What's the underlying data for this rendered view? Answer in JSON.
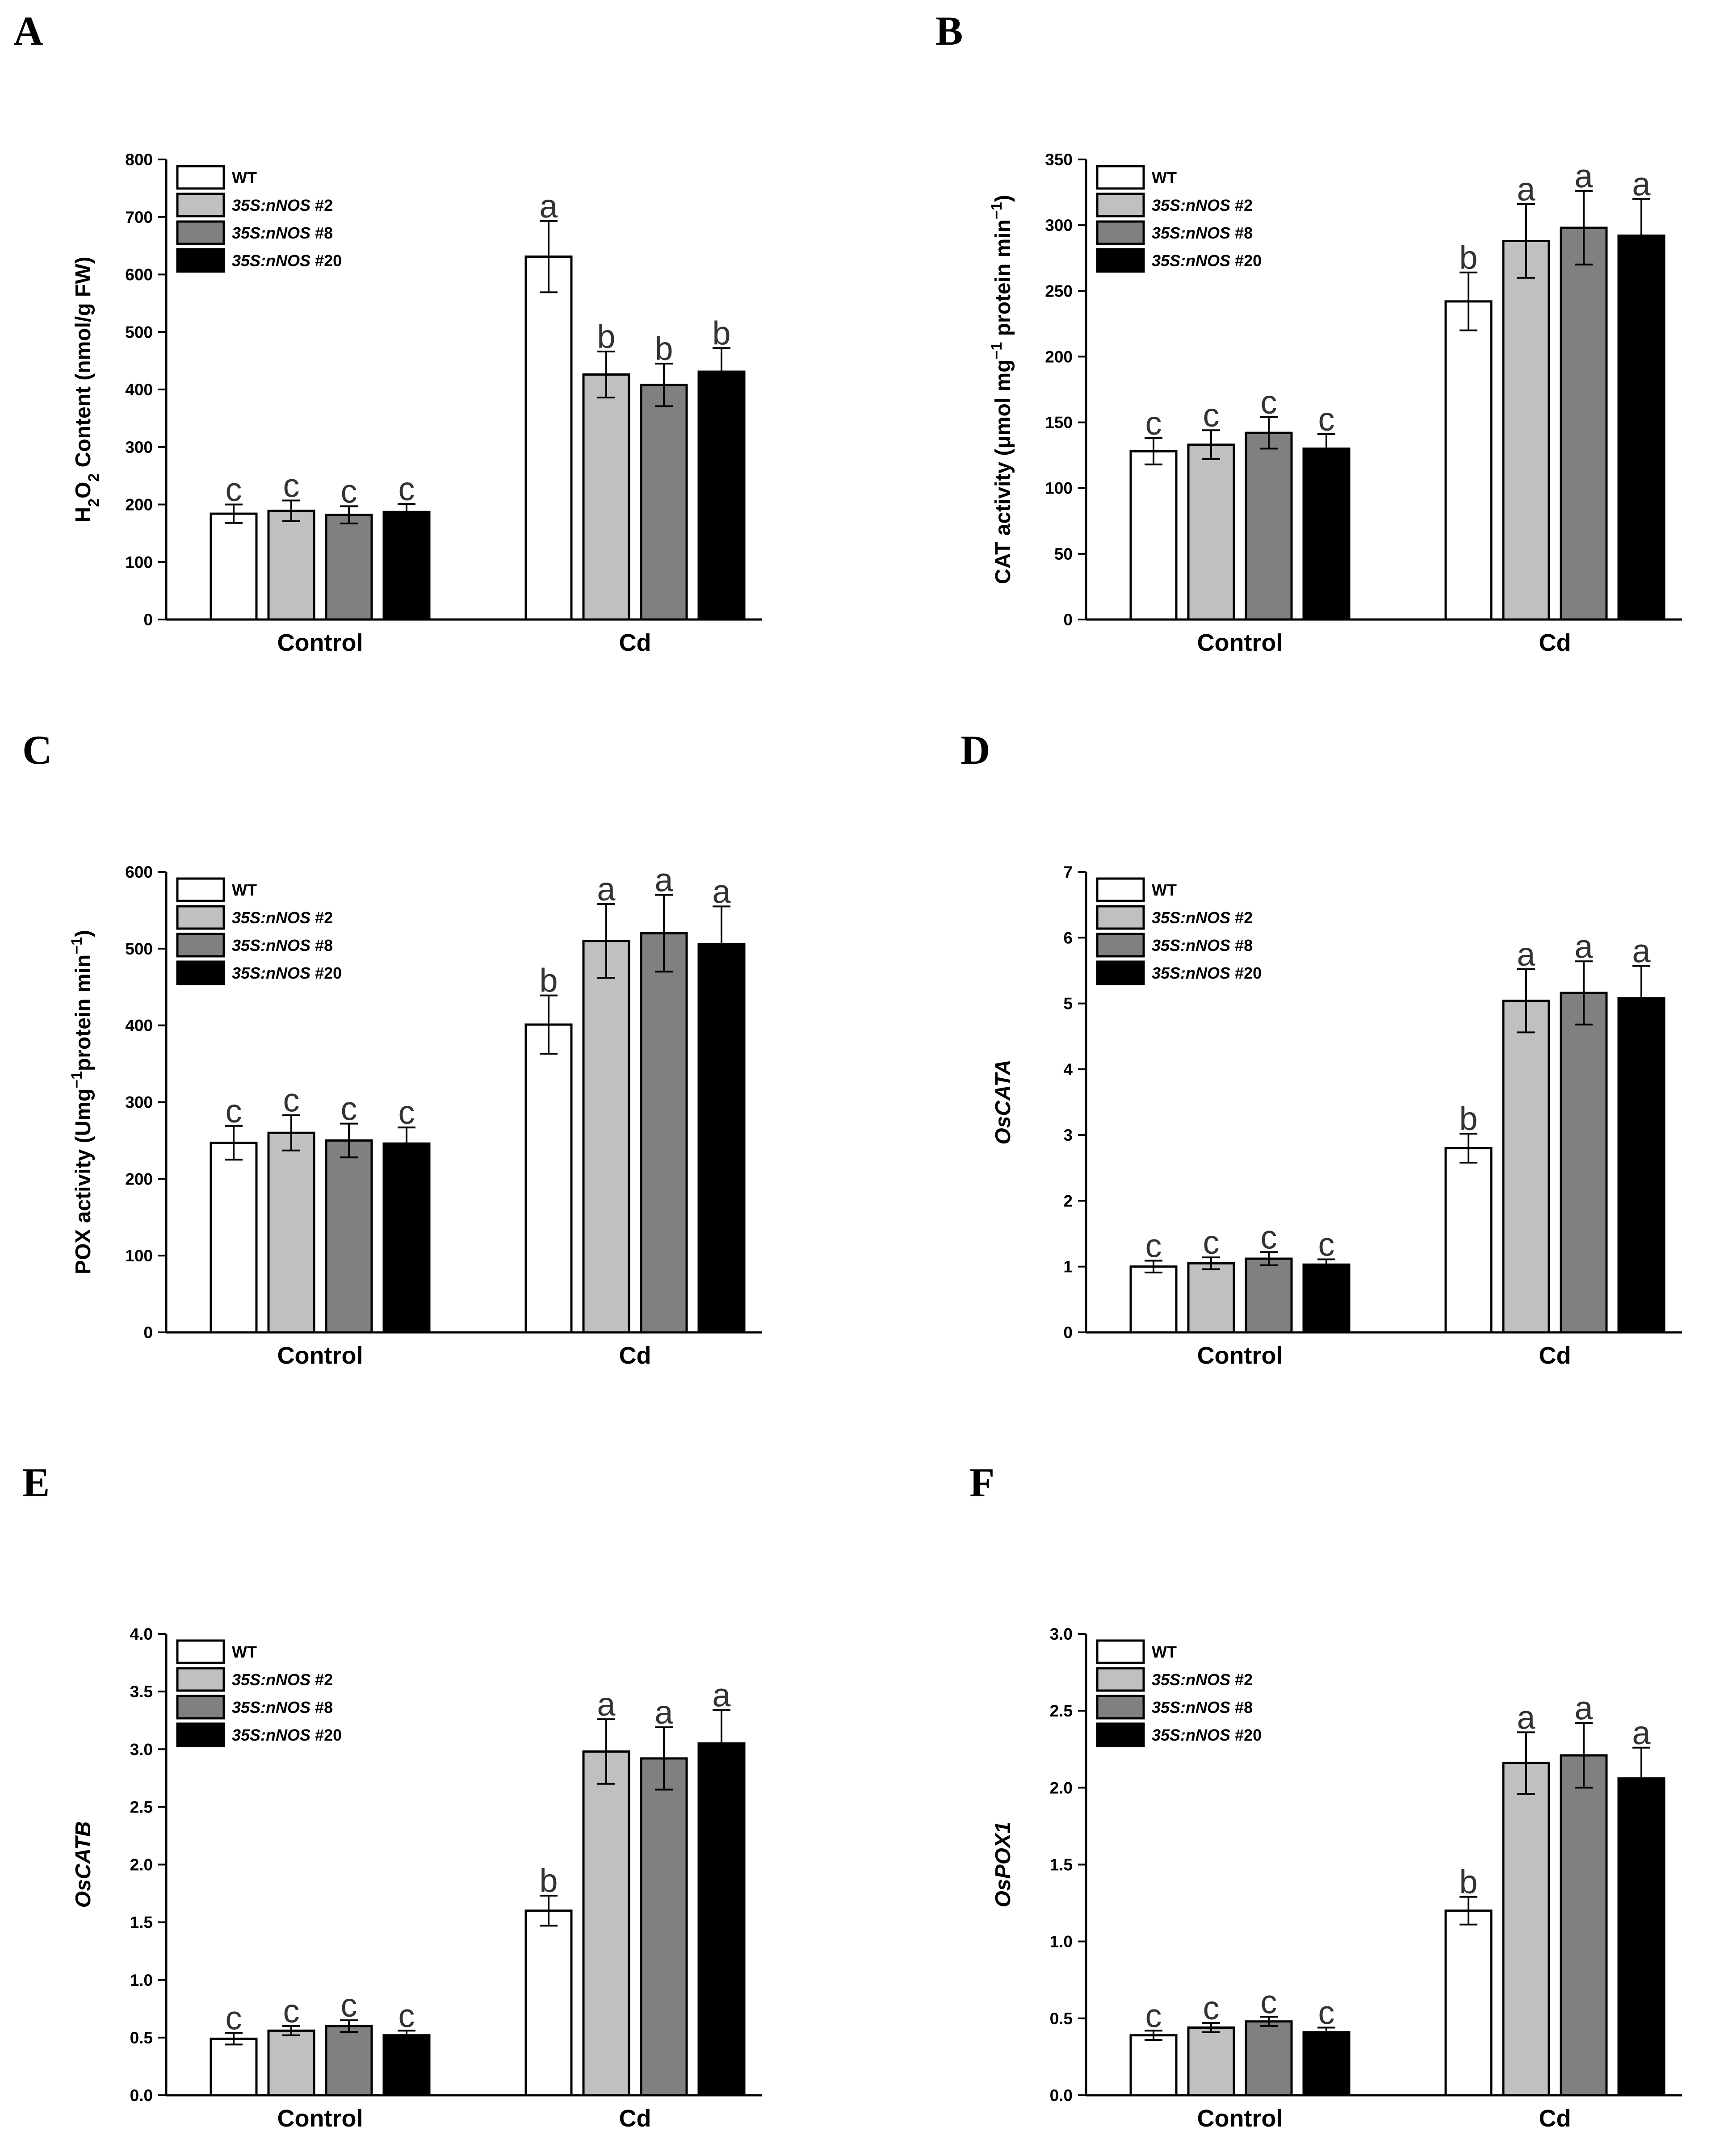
{
  "chart_data": [
    {
      "panel": "A",
      "type": "bar",
      "title": "",
      "ylabel_parts": [
        {
          "text": "H",
          "style": "normal"
        },
        {
          "text": "2",
          "style": "sub"
        },
        {
          "text": "O",
          "style": "normal"
        },
        {
          "text": "2",
          "style": "sub"
        },
        {
          "text": " Content (nmol/g FW)",
          "style": "normal"
        }
      ],
      "ylabel_italic": false,
      "categories": [
        "Control",
        "Cd"
      ],
      "ylim": [
        0,
        800
      ],
      "yticks": [
        0,
        100,
        200,
        300,
        400,
        500,
        600,
        700,
        800
      ],
      "decimals": 0,
      "series": [
        {
          "name": "WT",
          "values": [
            184,
            631
          ],
          "errors": [
            16,
            62
          ],
          "letters": [
            "c",
            "a"
          ]
        },
        {
          "name": "35S:nNOS #2",
          "values": [
            189,
            426
          ],
          "errors": [
            18,
            40
          ],
          "letters": [
            "c",
            "b"
          ]
        },
        {
          "name": "35S:nNOS #8",
          "values": [
            182,
            408
          ],
          "errors": [
            15,
            37
          ],
          "letters": [
            "c",
            "b"
          ]
        },
        {
          "name": "35S:nNOS #20",
          "values": [
            187,
            431
          ],
          "errors": [
            14,
            41
          ],
          "letters": [
            "c",
            "b"
          ]
        }
      ]
    },
    {
      "panel": "B",
      "type": "bar",
      "title": "",
      "ylabel_parts": [
        {
          "text": "CAT activity (μmol mg",
          "style": "normal"
        },
        {
          "text": "−1",
          "style": "sup"
        },
        {
          "text": " protein min",
          "style": "normal"
        },
        {
          "text": "−1",
          "style": "sup"
        },
        {
          "text": ")",
          "style": "normal"
        }
      ],
      "ylabel_italic": false,
      "categories": [
        "Control",
        "Cd"
      ],
      "ylim": [
        0,
        350
      ],
      "yticks": [
        0,
        50,
        100,
        150,
        200,
        250,
        300,
        350
      ],
      "decimals": 0,
      "series": [
        {
          "name": "WT",
          "values": [
            128,
            242
          ],
          "errors": [
            10,
            22
          ],
          "letters": [
            "c",
            "b"
          ]
        },
        {
          "name": "35S:nNOS #2",
          "values": [
            133,
            288
          ],
          "errors": [
            11,
            28
          ],
          "letters": [
            "c",
            "a"
          ]
        },
        {
          "name": "35S:nNOS #8",
          "values": [
            142,
            298
          ],
          "errors": [
            12,
            28
          ],
          "letters": [
            "c",
            "a"
          ]
        },
        {
          "name": "35S:nNOS #20",
          "values": [
            130,
            292
          ],
          "errors": [
            11,
            28
          ],
          "letters": [
            "c",
            "a"
          ]
        }
      ]
    },
    {
      "panel": "C",
      "type": "bar",
      "title": "",
      "ylabel_parts": [
        {
          "text": "POX activity (Umg",
          "style": "normal"
        },
        {
          "text": "−1",
          "style": "sup"
        },
        {
          "text": "protein min",
          "style": "normal"
        },
        {
          "text": "−1",
          "style": "sup"
        },
        {
          "text": ")",
          "style": "normal"
        }
      ],
      "ylabel_italic": false,
      "categories": [
        "Control",
        "Cd"
      ],
      "ylim": [
        0,
        600
      ],
      "yticks": [
        0,
        100,
        200,
        300,
        400,
        500,
        600
      ],
      "decimals": 0,
      "series": [
        {
          "name": "WT",
          "values": [
            247,
            401
          ],
          "errors": [
            22,
            38
          ],
          "letters": [
            "c",
            "b"
          ]
        },
        {
          "name": "35S:nNOS #2",
          "values": [
            260,
            510
          ],
          "errors": [
            23,
            48
          ],
          "letters": [
            "c",
            "a"
          ]
        },
        {
          "name": "35S:nNOS #8",
          "values": [
            250,
            520
          ],
          "errors": [
            22,
            50
          ],
          "letters": [
            "c",
            "a"
          ]
        },
        {
          "name": "35S:nNOS #20",
          "values": [
            246,
            506
          ],
          "errors": [
            21,
            49
          ],
          "letters": [
            "c",
            "a"
          ]
        }
      ]
    },
    {
      "panel": "D",
      "type": "bar",
      "title": "",
      "ylabel_parts": [
        {
          "text": "OsCATA",
          "style": "normal"
        }
      ],
      "ylabel_italic": true,
      "categories": [
        "Control",
        "Cd"
      ],
      "ylim": [
        0,
        7
      ],
      "yticks": [
        0,
        1,
        2,
        3,
        4,
        5,
        6,
        7
      ],
      "decimals": 0,
      "series": [
        {
          "name": "WT",
          "values": [
            1.0,
            2.8
          ],
          "errors": [
            0.09,
            0.22
          ],
          "letters": [
            "c",
            "b"
          ]
        },
        {
          "name": "35S:nNOS #2",
          "values": [
            1.05,
            5.04
          ],
          "errors": [
            0.09,
            0.48
          ],
          "letters": [
            "c",
            "a"
          ]
        },
        {
          "name": "35S:nNOS #8",
          "values": [
            1.12,
            5.16
          ],
          "errors": [
            0.1,
            0.48
          ],
          "letters": [
            "c",
            "a"
          ]
        },
        {
          "name": "35S:nNOS #20",
          "values": [
            1.03,
            5.08
          ],
          "errors": [
            0.08,
            0.49
          ],
          "letters": [
            "c",
            "a"
          ]
        }
      ]
    },
    {
      "panel": "E",
      "type": "bar",
      "title": "",
      "ylabel_parts": [
        {
          "text": "OsCATB",
          "style": "normal"
        }
      ],
      "ylabel_italic": true,
      "categories": [
        "Control",
        "Cd"
      ],
      "ylim": [
        0,
        4.0
      ],
      "yticks": [
        0,
        0.5,
        1.0,
        1.5,
        2.0,
        2.5,
        3.0,
        3.5,
        4.0
      ],
      "decimals": 1,
      "series": [
        {
          "name": "WT",
          "values": [
            0.49,
            1.6
          ],
          "errors": [
            0.05,
            0.13
          ],
          "letters": [
            "c",
            "b"
          ]
        },
        {
          "name": "35S:nNOS #2",
          "values": [
            0.56,
            2.98
          ],
          "errors": [
            0.04,
            0.28
          ],
          "letters": [
            "c",
            "a"
          ]
        },
        {
          "name": "35S:nNOS #8",
          "values": [
            0.6,
            2.92
          ],
          "errors": [
            0.05,
            0.27
          ],
          "letters": [
            "c",
            "a"
          ]
        },
        {
          "name": "35S:nNOS #20",
          "values": [
            0.52,
            3.05
          ],
          "errors": [
            0.04,
            0.29
          ],
          "letters": [
            "c",
            "a"
          ]
        }
      ]
    },
    {
      "panel": "F",
      "type": "bar",
      "title": "",
      "ylabel_parts": [
        {
          "text": "OsPOX1",
          "style": "normal"
        }
      ],
      "ylabel_italic": true,
      "categories": [
        "Control",
        "Cd"
      ],
      "ylim": [
        0,
        3.0
      ],
      "yticks": [
        0,
        0.5,
        1.0,
        1.5,
        2.0,
        2.5,
        3.0
      ],
      "decimals": 1,
      "series": [
        {
          "name": "WT",
          "values": [
            0.39,
            1.2
          ],
          "errors": [
            0.03,
            0.09
          ],
          "letters": [
            "c",
            "b"
          ]
        },
        {
          "name": "35S:nNOS #2",
          "values": [
            0.44,
            2.16
          ],
          "errors": [
            0.03,
            0.2
          ],
          "letters": [
            "c",
            "a"
          ]
        },
        {
          "name": "35S:nNOS #8",
          "values": [
            0.48,
            2.21
          ],
          "errors": [
            0.03,
            0.21
          ],
          "letters": [
            "c",
            "a"
          ]
        },
        {
          "name": "35S:nNOS #20",
          "values": [
            0.41,
            2.06
          ],
          "errors": [
            0.03,
            0.2
          ],
          "letters": [
            "c",
            "a"
          ]
        }
      ]
    }
  ],
  "legend": {
    "entries": [
      {
        "prefix": "WT",
        "suffix": "",
        "italic": false,
        "color": "#ffffff"
      },
      {
        "prefix": "35S:nNOS",
        "suffix": " #2",
        "italic": true,
        "color": "#c0c0c0"
      },
      {
        "prefix": "35S:nNOS",
        "suffix": " #8",
        "italic": true,
        "color": "#808080"
      },
      {
        "prefix": "35S:nNOS",
        "suffix": " #20",
        "italic": true,
        "color": "#000000"
      }
    ]
  },
  "colors": {
    "axis": "#000000",
    "bar_stroke": "#000000",
    "letters": "#333333"
  }
}
